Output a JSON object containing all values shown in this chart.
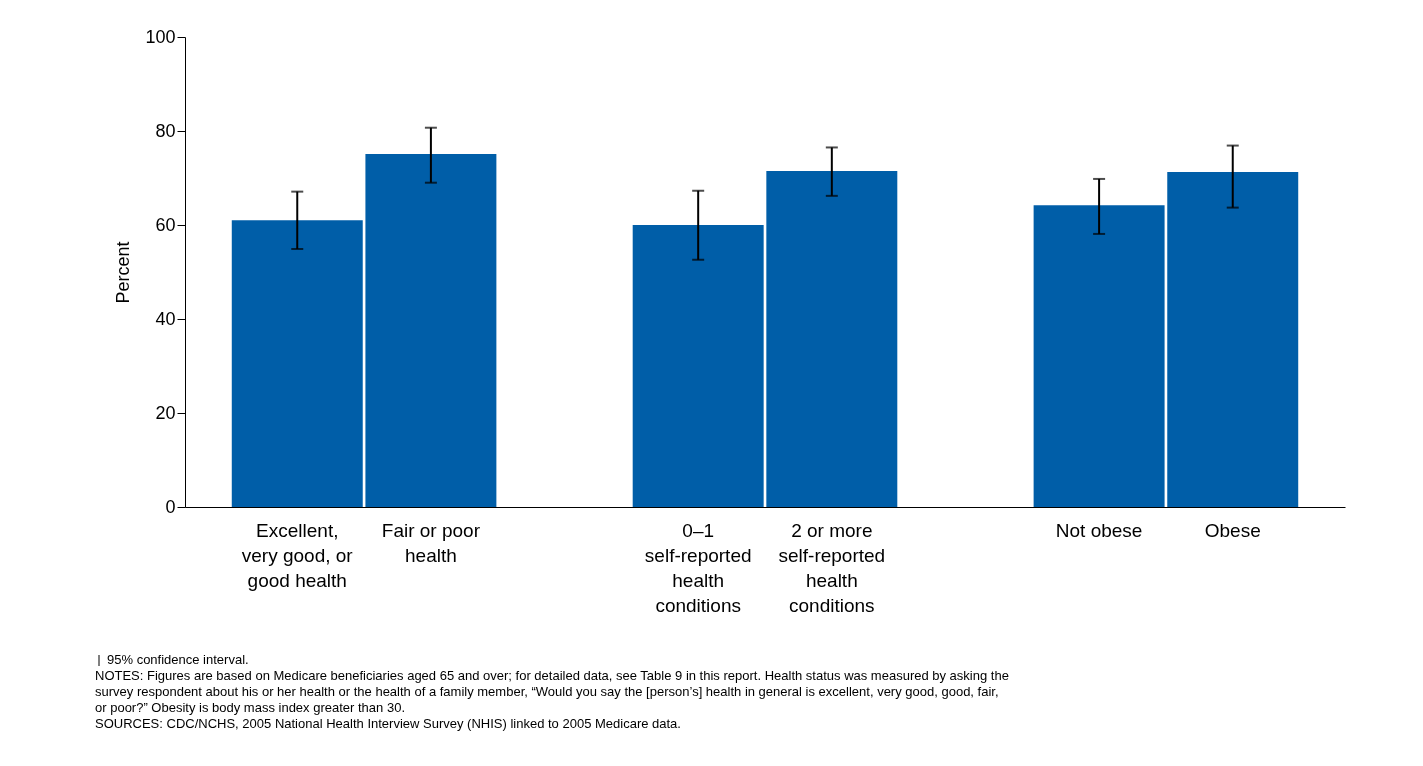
{
  "chart_data": {
    "type": "bar",
    "ylabel": "Percent",
    "categories": [
      "Excellent, very good, or good health",
      "Fair or poor health",
      "0–1 self-reported health conditions",
      "2 or more self-reported health conditions",
      "Not obese",
      "Obese"
    ],
    "values": [
      61.0,
      75.1,
      60.0,
      71.5,
      64.2,
      71.3
    ],
    "errors": [
      [
        54.9,
        67.1
      ],
      [
        69.0,
        80.7
      ],
      [
        52.6,
        67.3
      ],
      [
        66.2,
        76.5
      ],
      [
        58.1,
        69.8
      ],
      [
        63.7,
        76.9
      ]
    ],
    "color": "#005ea8",
    "ylim": [
      0,
      100
    ],
    "yticks": [
      0,
      20,
      40,
      60,
      80,
      100
    ],
    "grid": false,
    "annotations": [
      "95% confidence interval.",
      "NOTES: Figures are based on Medicare beneficiaries aged 65 and over; for detailed data, see Table 9 in this report. Health status was measured by asking the survey respondent about his or her health or the health of a family member, “Would you say the [person’s] health in general is excellent, very good, good, fair, or poor?” Obesity is body mass index greater than 30.",
      "SOURCES: CDC/NCHS, 2005 National Health Interview Survey (NHIS) linked to 2005 Medicare data."
    ]
  }
}
